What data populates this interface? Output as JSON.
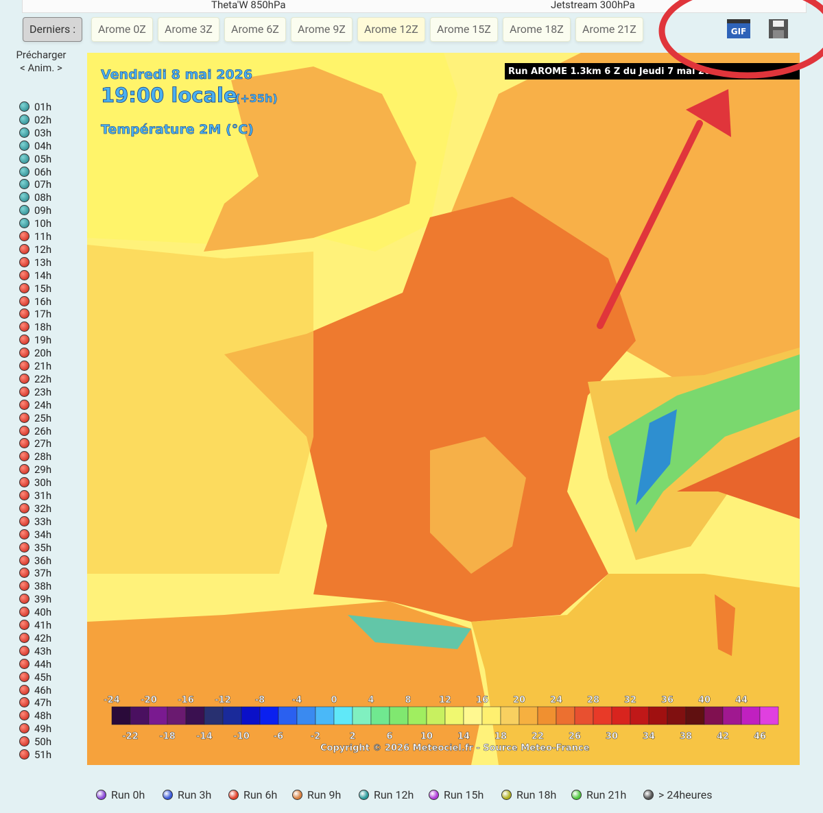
{
  "top_tabs": [
    "Theta'W 850hPa",
    "Jetstream 300hPa"
  ],
  "toolbar": {
    "label": "Derniers :",
    "runs": [
      "Arome 0Z",
      "Arome 3Z",
      "Arome 6Z",
      "Arome 9Z",
      "Arome 12Z",
      "Arome 15Z",
      "Arome 18Z",
      "Arome 21Z"
    ]
  },
  "icons": {
    "gif": "GIF"
  },
  "sidebar": {
    "preload": "Précharger",
    "anim": "< Anim. >",
    "hours": [
      "01h",
      "02h",
      "03h",
      "04h",
      "05h",
      "06h",
      "07h",
      "08h",
      "09h",
      "10h",
      "11h",
      "12h",
      "13h",
      "14h",
      "15h",
      "16h",
      "17h",
      "18h",
      "19h",
      "20h",
      "21h",
      "22h",
      "23h",
      "24h",
      "25h",
      "26h",
      "27h",
      "28h",
      "29h",
      "30h",
      "31h",
      "32h",
      "33h",
      "34h",
      "35h",
      "36h",
      "37h",
      "38h",
      "39h",
      "40h",
      "41h",
      "42h",
      "43h",
      "44h",
      "45h",
      "46h",
      "47h",
      "48h",
      "49h",
      "50h",
      "51h"
    ]
  },
  "map": {
    "date": "Vendredi 8 mai 2026",
    "time": "19:00 locale",
    "offset": "(+35h)",
    "parameter": "Température 2M (°C)",
    "run": "Run AROME 1.3km 6 Z du Jeudi 7 mai 20",
    "scale": {
      "top": [
        -24,
        -20,
        -16,
        -12,
        -8,
        -4,
        0,
        4,
        8,
        12,
        16,
        20,
        24,
        28,
        32,
        36,
        40,
        44
      ],
      "bottom": [
        -22,
        -18,
        -14,
        -10,
        -6,
        -2,
        2,
        6,
        10,
        14,
        18,
        22,
        26,
        30,
        34,
        38,
        42,
        46
      ]
    },
    "copyright": "Copyright © 2026 Meteociel.fr - Source Meteo-France"
  },
  "legend": [
    "Run 0h",
    "Run 3h",
    "Run 6h",
    "Run 9h",
    "Run 12h",
    "Run 15h",
    "Run 18h",
    "Run 21h",
    "> 24heures"
  ]
}
